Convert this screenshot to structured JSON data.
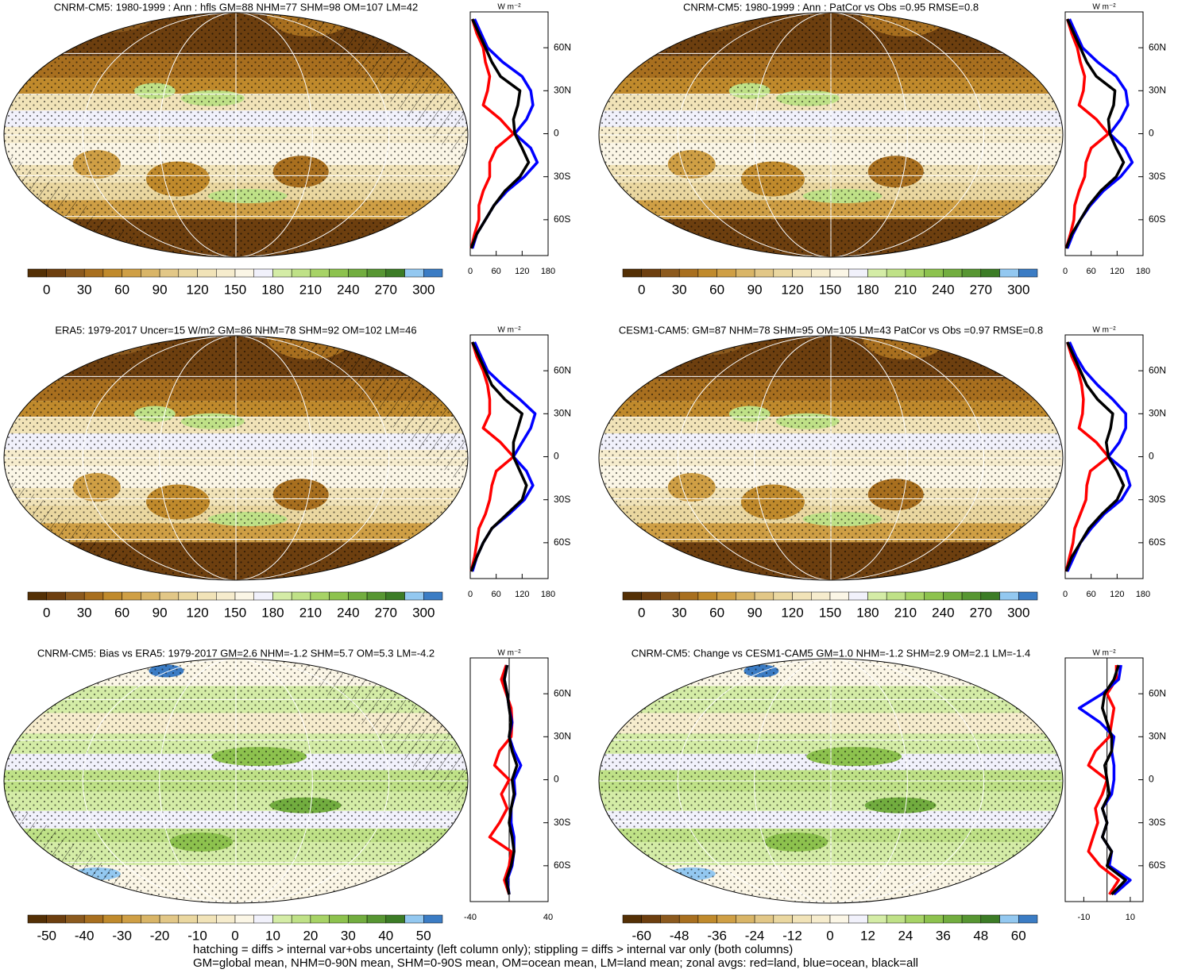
{
  "palette": [
    "#543005",
    "#6d3f0f",
    "#8c5a1e",
    "#a86f1f",
    "#c08a2c",
    "#cf9f45",
    "#d9b567",
    "#e2c787",
    "#ead7a0",
    "#f1e3b8",
    "#f6eccd",
    "#fbf6e6",
    "#f1f1fb",
    "#d4eca6",
    "#bfe187",
    "#a7d366",
    "#8dc24e",
    "#72ad3f",
    "#579632",
    "#3c7c26",
    "#93c8f0",
    "#3b7cc4"
  ],
  "lat": [
    -80,
    -70,
    -60,
    -50,
    -40,
    -30,
    -20,
    -10,
    0,
    10,
    20,
    30,
    40,
    50,
    60,
    70,
    80
  ],
  "lat_lim": [
    -85,
    85
  ],
  "lat_ticks": [
    {
      "value": 60,
      "label": "60N"
    },
    {
      "value": 30,
      "label": "30N"
    },
    0,
    {
      "value": -30,
      "label": "30S"
    },
    {
      "value": -60,
      "label": "60S"
    }
  ],
  "units": "W m⁻²",
  "panels": [
    {
      "title": "CNRM-CM5: 1980-1999 : Ann : hfls GM=88 NHM=77 SHM=98 OM=107 LM=42",
      "colorbar_labels": [
        0,
        30,
        60,
        90,
        120,
        150,
        180,
        210,
        240,
        270,
        300
      ],
      "zonal": {
        "type": "line",
        "xlim": [
          0,
          180
        ],
        "xticks": [
          0,
          60,
          120,
          180
        ],
        "series": [
          {
            "color": "#ff0000",
            "values": [
              2,
              10,
              20,
              20,
              30,
              45,
              45,
              60,
              100,
              70,
              30,
              40,
              45,
              35,
              30,
              15,
              5
            ]
          },
          {
            "color": "#0000ff",
            "values": [
              5,
              15,
              35,
              55,
              85,
              125,
              155,
              140,
              103,
              130,
              145,
              140,
              120,
              75,
              40,
              25,
              10
            ]
          },
          {
            "color": "#000000",
            "values": [
              2,
              15,
              35,
              55,
              80,
              115,
              135,
              120,
              103,
              100,
              110,
              115,
              70,
              50,
              35,
              20,
              5
            ]
          }
        ]
      }
    },
    {
      "title": "CNRM-CM5: 1980-1999 : Ann : PatCor vs Obs =0.95 RMSE=0.8",
      "colorbar_labels": [
        0,
        30,
        60,
        90,
        120,
        150,
        180,
        210,
        240,
        270,
        300
      ],
      "zonal": {
        "type": "line",
        "xlim": [
          0,
          180
        ],
        "xticks": [
          0,
          60,
          120,
          180
        ],
        "series": [
          {
            "color": "#ff0000",
            "values": [
              2,
              12,
              20,
              22,
              32,
              45,
              48,
              60,
              100,
              72,
              32,
              42,
              45,
              35,
              28,
              15,
              5
            ]
          },
          {
            "color": "#0000ff",
            "values": [
              5,
              18,
              35,
              58,
              88,
              128,
              155,
              138,
              103,
              128,
              145,
              140,
              118,
              75,
              40,
              25,
              10
            ]
          },
          {
            "color": "#000000",
            "values": [
              2,
              15,
              35,
              55,
              82,
              118,
              135,
              118,
              103,
              100,
              112,
              115,
              72,
              50,
              35,
              20,
              5
            ]
          }
        ]
      }
    },
    {
      "title": "ERA5: 1979-2017 Uncer=15 W/m2 GM=86 NHM=78 SHM=92 OM=102 LM=46",
      "colorbar_labels": [
        0,
        30,
        60,
        90,
        120,
        150,
        180,
        210,
        240,
        270,
        300
      ],
      "zonal": {
        "type": "line",
        "xlim": [
          0,
          180
        ],
        "xticks": [
          0,
          60,
          120,
          180
        ],
        "series": [
          {
            "color": "#ff0000",
            "values": [
              2,
              10,
              15,
              20,
              35,
              45,
              50,
              60,
              100,
              70,
              30,
              45,
              45,
              40,
              30,
              15,
              5
            ]
          },
          {
            "color": "#0000ff",
            "values": [
              5,
              15,
              30,
              50,
              90,
              125,
              145,
              130,
              100,
              120,
              140,
              150,
              115,
              75,
              40,
              25,
              10
            ]
          },
          {
            "color": "#000000",
            "values": [
              2,
              15,
              30,
              50,
              85,
              120,
              130,
              115,
              100,
              100,
              110,
              120,
              80,
              50,
              35,
              20,
              5
            ]
          }
        ]
      }
    },
    {
      "title": "CESM1-CAM5: GM=87 NHM=78 SHM=95 OM=105 LM=43 PatCor vs Obs =0.97 RMSE=0.8",
      "colorbar_labels": [
        0,
        30,
        60,
        90,
        120,
        150,
        180,
        210,
        240,
        270,
        300
      ],
      "zonal": {
        "type": "line",
        "xlim": [
          0,
          180
        ],
        "xticks": [
          0,
          60,
          120,
          180
        ],
        "series": [
          {
            "color": "#ff0000",
            "values": [
              2,
              10,
              18,
              22,
              35,
              48,
              50,
              58,
              100,
              72,
              32,
              40,
              42,
              38,
              30,
              15,
              5
            ]
          },
          {
            "color": "#0000ff",
            "values": [
              5,
              20,
              35,
              60,
              90,
              130,
              150,
              140,
              100,
              125,
              140,
              140,
              110,
              75,
              45,
              25,
              10
            ]
          },
          {
            "color": "#000000",
            "values": [
              2,
              15,
              35,
              55,
              85,
              120,
              135,
              120,
              100,
              95,
              105,
              110,
              75,
              50,
              35,
              20,
              5
            ]
          }
        ]
      }
    },
    {
      "title": "CNRM-CM5: Bias vs ERA5: 1979-2017 GM=2.6 NHM=-1.2 SHM=5.7 OM=5.3 LM=-4.2",
      "colorbar_labels": [
        -50,
        -40,
        -30,
        -20,
        -10,
        0,
        10,
        20,
        30,
        40,
        50
      ],
      "zonal": {
        "type": "line",
        "xlim": [
          -40,
          40
        ],
        "xticks": [
          -40,
          40
        ],
        "series": [
          {
            "color": "#ff0000",
            "values": [
              0,
              -5,
              0,
              2,
              -20,
              -10,
              -2,
              -8,
              0,
              -15,
              -10,
              2,
              3,
              2,
              -3,
              -8,
              -3
            ]
          },
          {
            "color": "#0000ff",
            "values": [
              0,
              -2,
              3,
              5,
              5,
              2,
              2,
              6,
              5,
              12,
              5,
              0,
              3,
              0,
              -2,
              -5,
              -2
            ]
          },
          {
            "color": "#000000",
            "values": [
              0,
              -3,
              2,
              5,
              3,
              0,
              2,
              5,
              3,
              8,
              3,
              0,
              2,
              0,
              -2,
              -5,
              -2
            ]
          }
        ]
      }
    },
    {
      "title": "CNRM-CM5: Change vs CESM1-CAM5 GM=1.0 NHM=-1.2 SHM=2.9 OM=2.1 LM=-1.4",
      "colorbar_labels": [
        -60,
        -48,
        -36,
        -24,
        -12,
        0,
        12,
        24,
        36,
        48,
        60
      ],
      "zonal": {
        "type": "line",
        "xlim": [
          -18,
          15.5
        ],
        "xticks": [
          -10,
          10
        ],
        "series": [
          {
            "color": "#ff0000",
            "values": [
              1,
              5,
              -3,
              -8,
              -6,
              -4,
              -5,
              -2,
              0,
              -8,
              -5,
              1,
              2,
              3,
              0,
              4,
              4
            ]
          },
          {
            "color": "#0000ff",
            "values": [
              3,
              10,
              1,
              2,
              -2,
              0,
              -2,
              2,
              3,
              3,
              2,
              3,
              -3,
              -12,
              -2,
              5,
              6
            ]
          },
          {
            "color": "#000000",
            "values": [
              2,
              8,
              0,
              2,
              -2,
              0,
              -2,
              1,
              0,
              -1,
              2,
              2,
              0,
              -2,
              -1,
              3,
              5
            ]
          }
        ]
      }
    }
  ],
  "footer": [
    "hatching = diffs > internal var+obs uncertainty (left column only); stippling = diffs > internal var only (both columns)",
    "GM=global mean, NHM=0-90N mean, SHM=0-90S mean, OM=ocean mean, LM=land mean; zonal avgs: red=land, blue=ocean, black=all"
  ]
}
